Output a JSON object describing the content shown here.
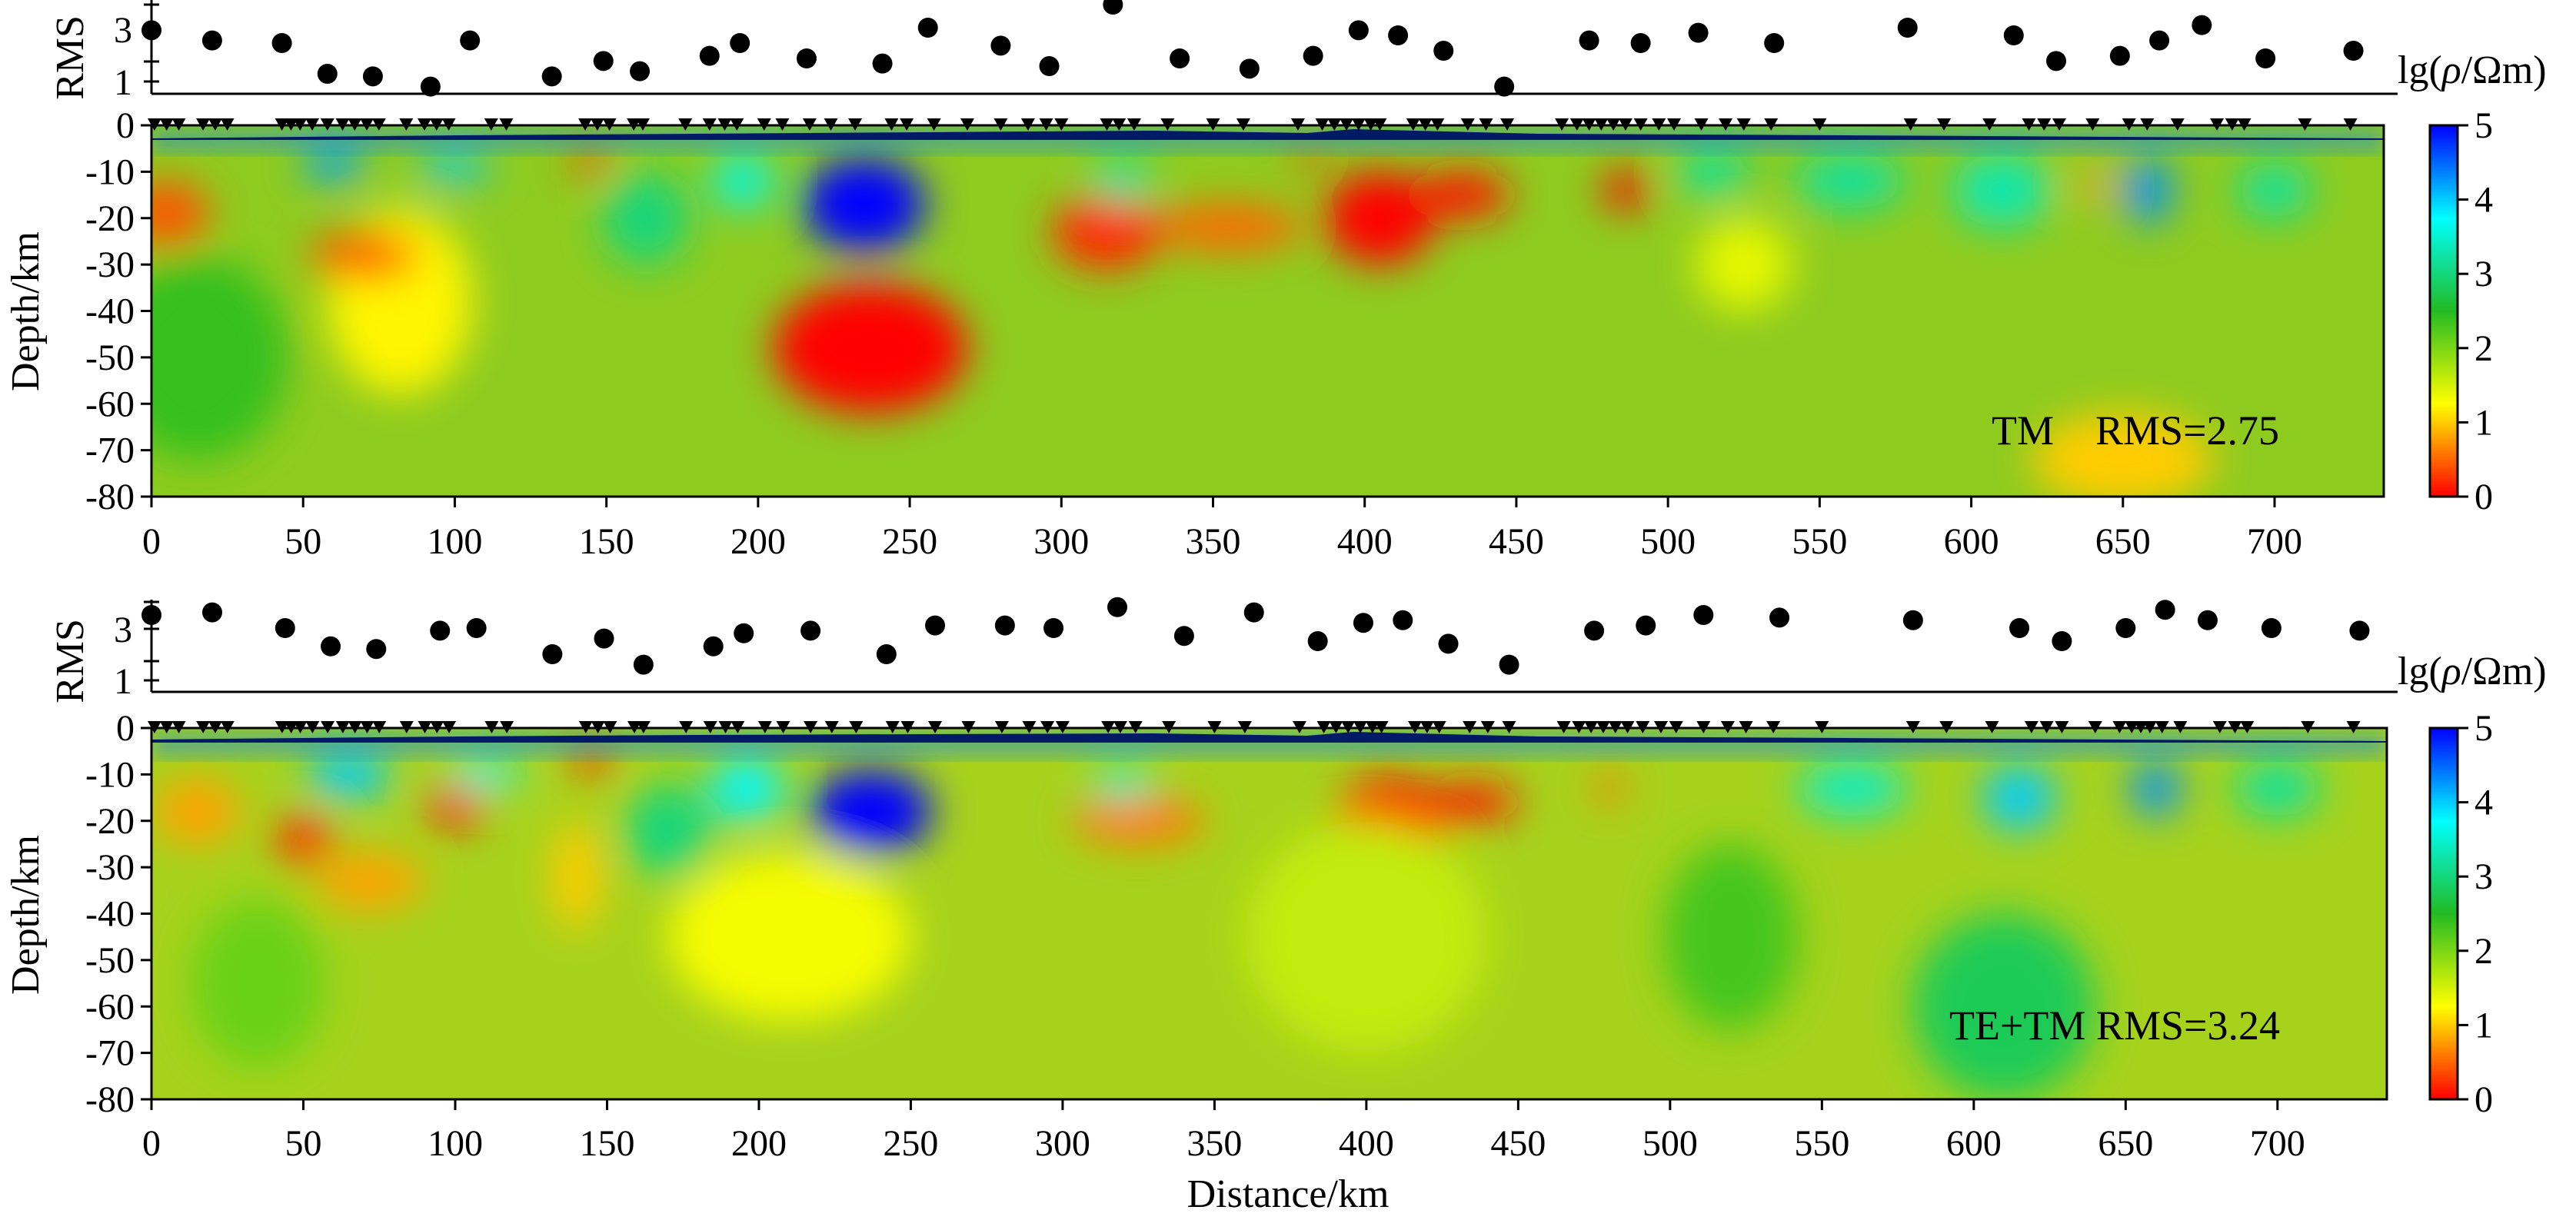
{
  "chart_data": [
    {
      "type": "heatmap",
      "panel": "TM",
      "annotation": "TM    RMS=2.75",
      "ylabel": "Depth/km",
      "rms_axis_label": "RMS",
      "rms_ticks": [
        "1",
        "3"
      ],
      "rms_range": [
        1,
        4
      ],
      "x_ticks": [
        "0",
        "50",
        "100",
        "150",
        "200",
        "250",
        "300",
        "350",
        "400",
        "450",
        "500",
        "550",
        "600",
        "650",
        "700"
      ],
      "y_ticks": [
        "0",
        "-10",
        "-20",
        "-30",
        "-40",
        "-50",
        "-60",
        "-70",
        "-80"
      ],
      "xlim": [
        0,
        736
      ],
      "ylim": [
        -80,
        0
      ],
      "colorbar": {
        "label_parts": [
          "lg(",
          "ρ",
          "/Ωm)"
        ],
        "ticks": [
          "0",
          "1",
          "2",
          "3",
          "4",
          "5"
        ],
        "range": [
          0,
          5
        ],
        "colors": [
          "#ff0000",
          "#ffff00",
          "#22bb22",
          "#00ffff",
          "#0000ff"
        ]
      },
      "rms_points": [
        {
          "x": 0,
          "y": 3.0
        },
        {
          "x": 20,
          "y": 2.6
        },
        {
          "x": 43,
          "y": 2.5
        },
        {
          "x": 58,
          "y": 1.3
        },
        {
          "x": 73,
          "y": 1.2
        },
        {
          "x": 92,
          "y": 0.8
        },
        {
          "x": 105,
          "y": 2.6
        },
        {
          "x": 132,
          "y": 1.2
        },
        {
          "x": 149,
          "y": 1.8
        },
        {
          "x": 161,
          "y": 1.4
        },
        {
          "x": 184,
          "y": 2.0
        },
        {
          "x": 194,
          "y": 2.5
        },
        {
          "x": 216,
          "y": 1.9
        },
        {
          "x": 241,
          "y": 1.7
        },
        {
          "x": 256,
          "y": 3.1
        },
        {
          "x": 280,
          "y": 2.4
        },
        {
          "x": 296,
          "y": 1.6
        },
        {
          "x": 317,
          "y": 4.0
        },
        {
          "x": 339,
          "y": 1.9
        },
        {
          "x": 362,
          "y": 1.5
        },
        {
          "x": 383,
          "y": 2.0
        },
        {
          "x": 398,
          "y": 3.0
        },
        {
          "x": 411,
          "y": 2.8
        },
        {
          "x": 426,
          "y": 2.2
        },
        {
          "x": 446,
          "y": 0.8
        },
        {
          "x": 474,
          "y": 2.6
        },
        {
          "x": 491,
          "y": 2.5
        },
        {
          "x": 510,
          "y": 2.9
        },
        {
          "x": 535,
          "y": 2.5
        },
        {
          "x": 579,
          "y": 3.1
        },
        {
          "x": 614,
          "y": 2.8
        },
        {
          "x": 628,
          "y": 1.8
        },
        {
          "x": 649,
          "y": 2.0
        },
        {
          "x": 662,
          "y": 2.6
        },
        {
          "x": 676,
          "y": 3.2
        },
        {
          "x": 697,
          "y": 1.9
        },
        {
          "x": 726,
          "y": 2.2
        }
      ],
      "stations_km": [
        1,
        5,
        9,
        17,
        21,
        25,
        43,
        46,
        49,
        53,
        58,
        63,
        67,
        71,
        75,
        84,
        90,
        94,
        98,
        112,
        117,
        143,
        147,
        151,
        159,
        162,
        176,
        184,
        189,
        193,
        202,
        208,
        217,
        224,
        232,
        244,
        249,
        258,
        269,
        280,
        289,
        295,
        300,
        315,
        319,
        324,
        335,
        350,
        360,
        378,
        386,
        390,
        394,
        398,
        402,
        405,
        416,
        420,
        424,
        434,
        440,
        447,
        465,
        470,
        474,
        478,
        482,
        486,
        491,
        497,
        502,
        511,
        519,
        525,
        534,
        550,
        580,
        591,
        606,
        619,
        624,
        629,
        640,
        652,
        658,
        668,
        681,
        686,
        690,
        710,
        725
      ],
      "anomalies": [
        {
          "x": 235,
          "depth": 17,
          "rx": 20,
          "ry": 10,
          "value": 5.0
        },
        {
          "x": 237,
          "depth": 48,
          "rx": 32,
          "ry": 14,
          "value": 0.0
        },
        {
          "x": 82,
          "depth": 38,
          "rx": 24,
          "ry": 20,
          "value": 1.2
        },
        {
          "x": 70,
          "depth": 28,
          "rx": 18,
          "ry": 5,
          "value": 0.4
        },
        {
          "x": 315,
          "depth": 23,
          "rx": 18,
          "ry": 8,
          "value": 0.2
        },
        {
          "x": 355,
          "depth": 22,
          "rx": 25,
          "ry": 5,
          "value": 0.5
        },
        {
          "x": 405,
          "depth": 20,
          "rx": 18,
          "ry": 10,
          "value": 0.0
        },
        {
          "x": 432,
          "depth": 15,
          "rx": 16,
          "ry": 5,
          "value": 0.1
        },
        {
          "x": 486,
          "depth": 14,
          "rx": 8,
          "ry": 4,
          "value": 0.0
        },
        {
          "x": 5,
          "depth": 19,
          "rx": 14,
          "ry": 7,
          "value": 0.4
        },
        {
          "x": 60,
          "depth": 8,
          "rx": 10,
          "ry": 4,
          "value": 4.2
        },
        {
          "x": 100,
          "depth": 9,
          "rx": 12,
          "ry": 3,
          "value": 4.0
        },
        {
          "x": 145,
          "depth": 8,
          "rx": 6,
          "ry": 3,
          "value": 0.3
        },
        {
          "x": 195,
          "depth": 12,
          "rx": 10,
          "ry": 6,
          "value": 3.6
        },
        {
          "x": 163,
          "depth": 20,
          "rx": 14,
          "ry": 10,
          "value": 3.0
        },
        {
          "x": 320,
          "depth": 12,
          "rx": 10,
          "ry": 5,
          "value": 3.2
        },
        {
          "x": 382,
          "depth": 7,
          "rx": 6,
          "ry": 2,
          "value": 0.3
        },
        {
          "x": 515,
          "depth": 10,
          "rx": 12,
          "ry": 5,
          "value": 3.2
        },
        {
          "x": 560,
          "depth": 12,
          "rx": 18,
          "ry": 6,
          "value": 3.2
        },
        {
          "x": 610,
          "depth": 14,
          "rx": 16,
          "ry": 8,
          "value": 3.3
        },
        {
          "x": 658,
          "depth": 14,
          "rx": 8,
          "ry": 7,
          "value": 4.3
        },
        {
          "x": 700,
          "depth": 14,
          "rx": 12,
          "ry": 6,
          "value": 3.2
        },
        {
          "x": 640,
          "depth": 13,
          "rx": 6,
          "ry": 3,
          "value": 0.8
        },
        {
          "x": 650,
          "depth": 72,
          "rx": 30,
          "ry": 10,
          "value": 1.0
        },
        {
          "x": 525,
          "depth": 30,
          "rx": 16,
          "ry": 10,
          "value": 1.4
        },
        {
          "x": 15,
          "depth": 50,
          "rx": 30,
          "ry": 22,
          "value": 2.4
        }
      ]
    },
    {
      "type": "heatmap",
      "panel": "TE+TM",
      "annotation": "TE+TM RMS=3.24",
      "xlabel": "Distance/km",
      "ylabel": "Depth/km",
      "rms_axis_label": "RMS",
      "rms_ticks": [
        "1",
        "3"
      ],
      "rms_range": [
        1,
        4
      ],
      "x_ticks": [
        "0",
        "50",
        "100",
        "150",
        "200",
        "250",
        "300",
        "350",
        "400",
        "450",
        "500",
        "550",
        "600",
        "650",
        "700"
      ],
      "y_ticks": [
        "0",
        "-10",
        "-20",
        "-30",
        "-40",
        "-50",
        "-60",
        "-70",
        "-80"
      ],
      "xlim": [
        0,
        736
      ],
      "ylim": [
        -80,
        0
      ],
      "colorbar": {
        "label_parts": [
          "lg(",
          "ρ",
          "/Ωm)"
        ],
        "ticks": [
          "0",
          "1",
          "2",
          "3",
          "4",
          "5"
        ],
        "range": [
          0,
          5
        ],
        "colors": [
          "#ff0000",
          "#ffff00",
          "#22bb22",
          "#00ffff",
          "#0000ff"
        ]
      },
      "rms_points": [
        {
          "x": 0,
          "y": 3.5
        },
        {
          "x": 20,
          "y": 3.6
        },
        {
          "x": 44,
          "y": 3.0
        },
        {
          "x": 59,
          "y": 2.3
        },
        {
          "x": 74,
          "y": 2.2
        },
        {
          "x": 95,
          "y": 2.9
        },
        {
          "x": 107,
          "y": 3.0
        },
        {
          "x": 132,
          "y": 2.0
        },
        {
          "x": 149,
          "y": 2.6
        },
        {
          "x": 162,
          "y": 1.6
        },
        {
          "x": 185,
          "y": 2.3
        },
        {
          "x": 195,
          "y": 2.8
        },
        {
          "x": 217,
          "y": 2.9
        },
        {
          "x": 242,
          "y": 2.0
        },
        {
          "x": 258,
          "y": 3.1
        },
        {
          "x": 281,
          "y": 3.1
        },
        {
          "x": 297,
          "y": 3.0
        },
        {
          "x": 318,
          "y": 3.8
        },
        {
          "x": 340,
          "y": 2.7
        },
        {
          "x": 363,
          "y": 3.6
        },
        {
          "x": 384,
          "y": 2.5
        },
        {
          "x": 399,
          "y": 3.2
        },
        {
          "x": 412,
          "y": 3.3
        },
        {
          "x": 427,
          "y": 2.4
        },
        {
          "x": 447,
          "y": 1.6
        },
        {
          "x": 475,
          "y": 2.9
        },
        {
          "x": 492,
          "y": 3.1
        },
        {
          "x": 511,
          "y": 3.5
        },
        {
          "x": 536,
          "y": 3.4
        },
        {
          "x": 580,
          "y": 3.3
        },
        {
          "x": 615,
          "y": 3.0
        },
        {
          "x": 629,
          "y": 2.5
        },
        {
          "x": 650,
          "y": 3.0
        },
        {
          "x": 663,
          "y": 3.7
        },
        {
          "x": 677,
          "y": 3.3
        },
        {
          "x": 698,
          "y": 3.0
        },
        {
          "x": 727,
          "y": 2.9
        }
      ],
      "stations_km": [
        1,
        5,
        9,
        17,
        21,
        25,
        43,
        46,
        49,
        53,
        58,
        63,
        67,
        71,
        75,
        84,
        90,
        94,
        98,
        112,
        117,
        143,
        147,
        151,
        159,
        162,
        176,
        184,
        189,
        193,
        202,
        208,
        217,
        224,
        232,
        244,
        249,
        258,
        269,
        280,
        289,
        295,
        300,
        315,
        319,
        324,
        335,
        350,
        360,
        378,
        386,
        390,
        394,
        398,
        402,
        405,
        416,
        420,
        424,
        434,
        440,
        447,
        465,
        470,
        474,
        478,
        482,
        486,
        491,
        497,
        502,
        511,
        519,
        525,
        534,
        550,
        580,
        591,
        606,
        619,
        624,
        629,
        640,
        648,
        652,
        655,
        658,
        662,
        668,
        681,
        686,
        690,
        710,
        725
      ],
      "anomalies": [
        {
          "x": 237,
          "depth": 18,
          "rx": 20,
          "ry": 9,
          "value": 5.0
        },
        {
          "x": 100,
          "depth": 17,
          "rx": 9,
          "ry": 4,
          "value": 0.0
        },
        {
          "x": 50,
          "depth": 24,
          "rx": 9,
          "ry": 5,
          "value": 0.2
        },
        {
          "x": 72,
          "depth": 33,
          "rx": 18,
          "ry": 6,
          "value": 0.8
        },
        {
          "x": 145,
          "depth": 7,
          "rx": 7,
          "ry": 3,
          "value": 0.2
        },
        {
          "x": 140,
          "depth": 32,
          "rx": 8,
          "ry": 12,
          "value": 1.0
        },
        {
          "x": 65,
          "depth": 10,
          "rx": 14,
          "ry": 5,
          "value": 4.0
        },
        {
          "x": 110,
          "depth": 10,
          "rx": 12,
          "ry": 3,
          "value": 3.8
        },
        {
          "x": 196,
          "depth": 13,
          "rx": 12,
          "ry": 7,
          "value": 3.8
        },
        {
          "x": 170,
          "depth": 22,
          "rx": 14,
          "ry": 10,
          "value": 3.0
        },
        {
          "x": 325,
          "depth": 20,
          "rx": 22,
          "ry": 5,
          "value": 0.6
        },
        {
          "x": 408,
          "depth": 20,
          "rx": 18,
          "ry": 9,
          "value": 0.0
        },
        {
          "x": 435,
          "depth": 16,
          "rx": 15,
          "ry": 4,
          "value": 0.1
        },
        {
          "x": 480,
          "depth": 13,
          "rx": 6,
          "ry": 3,
          "value": 0.6
        },
        {
          "x": 15,
          "depth": 18,
          "rx": 14,
          "ry": 7,
          "value": 0.8
        },
        {
          "x": 320,
          "depth": 12,
          "rx": 10,
          "ry": 4,
          "value": 3.4
        },
        {
          "x": 560,
          "depth": 13,
          "rx": 18,
          "ry": 6,
          "value": 3.4
        },
        {
          "x": 615,
          "depth": 15,
          "rx": 12,
          "ry": 7,
          "value": 4.0
        },
        {
          "x": 660,
          "depth": 13,
          "rx": 8,
          "ry": 6,
          "value": 4.3
        },
        {
          "x": 700,
          "depth": 13,
          "rx": 14,
          "ry": 6,
          "value": 3.2
        },
        {
          "x": 610,
          "depth": 60,
          "rx": 30,
          "ry": 20,
          "value": 2.8
        },
        {
          "x": 520,
          "depth": 45,
          "rx": 22,
          "ry": 20,
          "value": 2.3
        },
        {
          "x": 35,
          "depth": 55,
          "rx": 22,
          "ry": 18,
          "value": 2.1
        },
        {
          "x": 210,
          "depth": 45,
          "rx": 40,
          "ry": 18,
          "value": 1.3
        },
        {
          "x": 400,
          "depth": 45,
          "rx": 40,
          "ry": 25,
          "value": 1.6
        }
      ]
    }
  ]
}
